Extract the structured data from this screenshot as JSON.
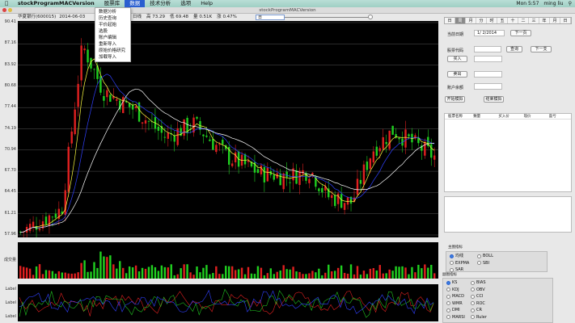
{
  "menubar": {
    "app": "stockProgramMACVersion",
    "items": [
      "股票库",
      "数据",
      "技术分析",
      "选项",
      "Help"
    ],
    "active_index": 1
  },
  "status": {
    "clock": "Mon 5:57",
    "user": "ming liu"
  },
  "window": {
    "title": "stockProgramMACVersion"
  },
  "dropdown": {
    "items": [
      "数据分析",
      "历史查询",
      "平价起始",
      "选股",
      "账户编辑",
      "重新导入",
      "原始价格研究",
      "加载导入"
    ]
  },
  "infobar": {
    "stock": "华夏银行(600015)",
    "date": "2014-06-03",
    "period": "日线",
    "high_label": "高",
    "high": "73.29",
    "low_label": "低",
    "low": "69.48",
    "vol_label": "量",
    "vol": "0.51K",
    "chg_label": "涨",
    "chg": "0.47%"
  },
  "period_select": {
    "value": "日"
  },
  "axis": {
    "price_ticks": [
      "90.41",
      "87.16",
      "83.92",
      "80.68",
      "77.44",
      "74.19",
      "70.94",
      "67.70",
      "64.45",
      "61.21",
      "57.96"
    ],
    "volume_label": "成交量",
    "indicator_labels": [
      "Label",
      "Label",
      "Label"
    ]
  },
  "price_path": [
    [
      0,
      58.5
    ],
    [
      0.1,
      62
    ],
    [
      0.15,
      87
    ],
    [
      0.2,
      80
    ],
    [
      0.28,
      77
    ],
    [
      0.35,
      73
    ],
    [
      0.42,
      75
    ],
    [
      0.5,
      70
    ],
    [
      0.58,
      67.5
    ],
    [
      0.65,
      67
    ],
    [
      0.7,
      68
    ],
    [
      0.74,
      64
    ],
    [
      0.8,
      63
    ],
    [
      0.85,
      71
    ],
    [
      0.9,
      74
    ],
    [
      0.95,
      72
    ],
    [
      1,
      70
    ]
  ],
  "colors": {
    "up": "#e02020",
    "down": "#20d020",
    "ma1": "#ffffff",
    "ma2": "#3040ff",
    "ma3": "#ffff40"
  },
  "right_panel": {
    "tabs": [
      "日",
      "周",
      "月",
      "分",
      "时",
      "五",
      "十",
      "二",
      "三",
      "年",
      "月",
      "日"
    ],
    "selected_tab": 1,
    "date_label": "当前日期",
    "date_value": "1/ 2/2014",
    "next_button": "下一页",
    "code_label": "股票代码",
    "search_button": "查询",
    "next2_button": "下一支",
    "buy_button": "买入",
    "sell_button": "卖出",
    "account_label": "账户余额",
    "start_button": "开始模拟",
    "stop_button": "结束模拟",
    "table_headers": [
      "股票名称",
      "数量",
      "买入价",
      "现价",
      "盈亏"
    ],
    "group1_title": "主图指标",
    "group1_options": [
      "均线",
      "BOLL",
      "EXPMA",
      "SBI",
      "SAR"
    ],
    "group2_title": "副图指标",
    "group2_options": [
      "KS",
      "BIAS",
      "KDJ",
      "OBV",
      "MACD",
      "CCI",
      "WMR",
      "ROC",
      "DMI",
      "CR",
      "MARSI",
      "Ruler"
    ]
  }
}
